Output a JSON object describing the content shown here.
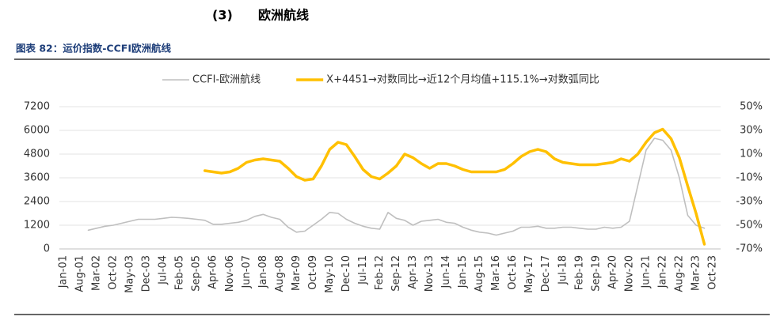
{
  "header": {
    "number": "(3)",
    "title": "欧洲航线"
  },
  "caption": "图表 82：运价指数-CCFI欧洲航线",
  "chart_data": {
    "type": "line",
    "categories": [
      "Jan-01",
      null,
      "Aug-01",
      null,
      "Mar-02",
      null,
      "Oct-02",
      null,
      "May-03",
      null,
      "Dec-03",
      null,
      "Jul-04",
      null,
      "Feb-05",
      null,
      "Sep-05",
      null,
      "Apr-06",
      null,
      "Nov-06",
      null,
      "Jun-07",
      null,
      "Jan-08",
      null,
      "Aug-08",
      null,
      "Mar-09",
      null,
      "Oct-09",
      null,
      "May-10",
      null,
      "Dec-10",
      null,
      "Jul-11",
      null,
      "Feb-12",
      null,
      "Sep-12",
      null,
      "Apr-13",
      null,
      "Nov-13",
      null,
      "Jun-14",
      null,
      "Jan-15",
      null,
      "Aug-15",
      null,
      "Mar-16",
      null,
      "Oct-16",
      null,
      "May-17",
      null,
      "Dec-17",
      null,
      "Jul-18",
      null,
      "Feb-19",
      null,
      "Sep-19",
      null,
      "Apr-20",
      null,
      "Nov-20",
      null,
      "Jun-21",
      null,
      "Jan-22",
      null,
      "Aug-22",
      null,
      "Mar-23",
      null,
      "Oct-23"
    ],
    "series": [
      {
        "name": "CCFI-欧洲航线",
        "color": "#bfbfbf",
        "axis": "y",
        "values": [
          null,
          null,
          null,
          950,
          1050,
          1150,
          1200,
          1300,
          1400,
          1500,
          1500,
          1500,
          1550,
          1600,
          1580,
          1550,
          1500,
          1450,
          1250,
          1250,
          1300,
          1350,
          1450,
          1650,
          1750,
          1600,
          1500,
          1100,
          850,
          900,
          1200,
          1500,
          1850,
          1800,
          1500,
          1300,
          1150,
          1050,
          1000,
          1850,
          1550,
          1450,
          1200,
          1400,
          1450,
          1500,
          1350,
          1300,
          1100,
          950,
          850,
          800,
          700,
          800,
          900,
          1100,
          1100,
          1150,
          1050,
          1050,
          1100,
          1100,
          1050,
          1000,
          1000,
          1100,
          1050,
          1100,
          1400,
          3200,
          5000,
          5600,
          5500,
          5000,
          3600,
          1700,
          1200,
          1050,
          null
        ]
      },
      {
        "name": "X+4451→对数同比→近12个月均值+115.1%→对数弧同比",
        "color": "#ffc000",
        "axis": "y2",
        "values": [
          null,
          null,
          null,
          null,
          null,
          null,
          null,
          null,
          null,
          null,
          null,
          null,
          null,
          null,
          null,
          null,
          null,
          -4,
          -5,
          -6,
          -5,
          -2,
          3,
          5,
          6,
          5,
          4,
          -2,
          -9,
          -12,
          -11,
          0,
          14,
          20,
          18,
          8,
          -3,
          -9,
          -11,
          -6,
          0,
          10,
          7,
          2,
          -2,
          2,
          2,
          0,
          -3,
          -5,
          -5,
          -5,
          -5,
          -3,
          2,
          8,
          12,
          14,
          12,
          6,
          3,
          2,
          1,
          1,
          1,
          2,
          3,
          6,
          4,
          10,
          20,
          28,
          31,
          23,
          7,
          -17,
          -40,
          -66,
          null
        ]
      }
    ],
    "ylim": [
      0,
      7200
    ],
    "yticks": [
      0,
      1200,
      2400,
      3600,
      4800,
      6000,
      7200
    ],
    "y2lim": [
      -70,
      50
    ],
    "y2ticks": [
      {
        "value": -70,
        "label": "-70%"
      },
      {
        "value": -50,
        "label": "-50%"
      },
      {
        "value": -30,
        "label": "-30%"
      },
      {
        "value": -10,
        "label": "-10%"
      },
      {
        "value": 10,
        "label": "10%"
      },
      {
        "value": 30,
        "label": "30%"
      },
      {
        "value": 50,
        "label": "50%"
      }
    ],
    "grid": true,
    "legend": "top"
  }
}
